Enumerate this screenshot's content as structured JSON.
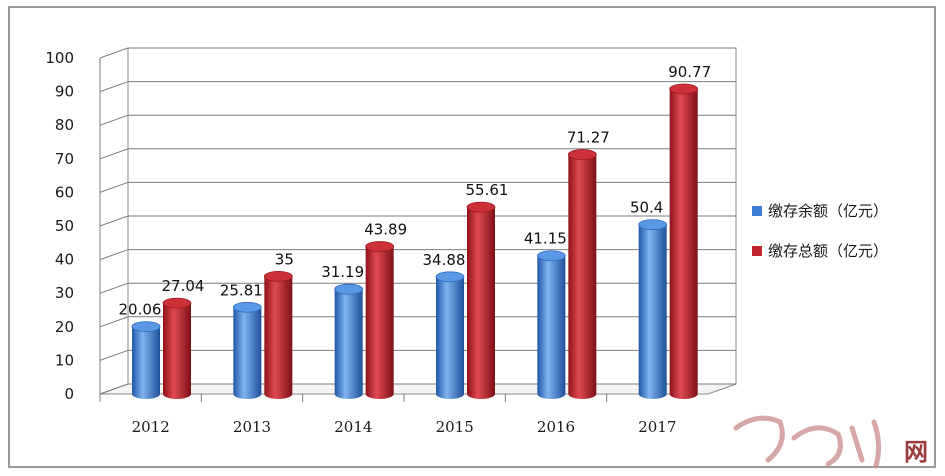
{
  "chart_data": {
    "type": "bar",
    "categories": [
      "2012",
      "2013",
      "2014",
      "2015",
      "2016",
      "2017"
    ],
    "series": [
      {
        "name": "缴存余额（亿元）",
        "values": [
          20.06,
          25.81,
          31.19,
          34.88,
          41.15,
          50.4
        ],
        "labels": [
          "20.06",
          "25.81",
          "31.19",
          "34.88",
          "41.15",
          "50.4"
        ],
        "color": "#3b7fd4"
      },
      {
        "name": "缴存总额（亿元）",
        "values": [
          27.04,
          35,
          43.89,
          55.61,
          71.27,
          90.77
        ],
        "labels": [
          "27.04",
          "35",
          "43.89",
          "55.61",
          "71.27",
          "90.77"
        ],
        "color": "#c0262f"
      }
    ],
    "yticks": [
      "0",
      "10",
      "20",
      "30",
      "40",
      "50",
      "60",
      "70",
      "80",
      "90",
      "100"
    ],
    "ylim": [
      0,
      100
    ],
    "grid": true,
    "legend_position": "right",
    "style": "3d-cylinder"
  },
  "watermark": {
    "text": "网",
    "color": "#9b3b3b"
  }
}
